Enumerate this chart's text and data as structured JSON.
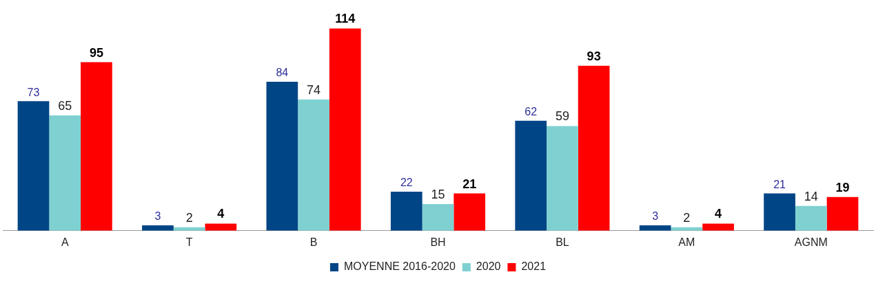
{
  "chart_data": {
    "type": "bar",
    "categories": [
      "A",
      "T",
      "B",
      "BH",
      "BL",
      "AM",
      "AGNM"
    ],
    "series": [
      {
        "name": "MOYENNE 2016-2020",
        "color": "#004586",
        "values": [
          73,
          3,
          84,
          22,
          62,
          3,
          21
        ]
      },
      {
        "name": "2020",
        "color": "#7fd1d1",
        "values": [
          65,
          2,
          74,
          15,
          59,
          2,
          14
        ]
      },
      {
        "name": "2021",
        "color": "#ff0000",
        "values": [
          95,
          4,
          114,
          21,
          93,
          4,
          19
        ]
      }
    ],
    "data_labels": true,
    "legend": "bottom",
    "grid": false
  }
}
